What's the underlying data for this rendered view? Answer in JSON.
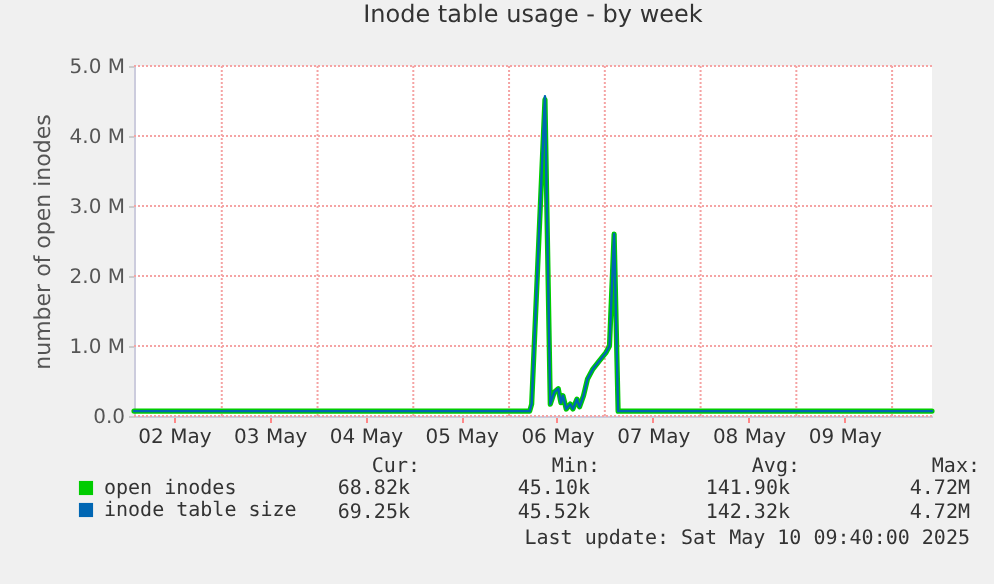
{
  "chart_data": {
    "type": "line",
    "title": "Inode table usage - by week",
    "ylabel": "number of open inodes",
    "x": [
      "2025-05-02T02:00",
      "2025-05-06T05:10",
      "2025-05-06T05:40",
      "2025-05-06T09:00",
      "2025-05-06T10:20",
      "2025-05-06T11:20",
      "2025-05-06T12:20",
      "2025-05-06T13:00",
      "2025-05-06T13:30",
      "2025-05-06T14:20",
      "2025-05-06T15:20",
      "2025-05-06T16:00",
      "2025-05-06T17:00",
      "2025-05-06T17:40",
      "2025-05-06T18:40",
      "2025-05-06T19:40",
      "2025-05-06T21:00",
      "2025-05-06T22:40",
      "2025-05-07T00:20",
      "2025-05-07T01:10",
      "2025-05-07T02:20",
      "2025-05-07T03:20",
      "2025-05-10T10:00"
    ],
    "series": [
      {
        "name": "open inodes",
        "color": "#00cc00",
        "values": [
          70000,
          70000,
          170000,
          4520000,
          170000,
          340000,
          390000,
          190000,
          290000,
          100000,
          170000,
          100000,
          240000,
          130000,
          290000,
          530000,
          670000,
          790000,
          910000,
          1000000,
          2600000,
          70000,
          70000
        ]
      },
      {
        "name": "inode table size",
        "color": "#0066b3",
        "values": [
          70000,
          70000,
          170000,
          4570000,
          170000,
          340000,
          390000,
          190000,
          290000,
          100000,
          170000,
          100000,
          240000,
          130000,
          290000,
          530000,
          670000,
          790000,
          910000,
          1000000,
          2600000,
          70000,
          70000
        ]
      }
    ],
    "xlim": [
      "2025-05-02T02:00",
      "2025-05-10T10:00"
    ],
    "xticks": [
      {
        "value": "2025-05-02T12:00",
        "label": "02 May"
      },
      {
        "value": "2025-05-03T00:00",
        "label": null
      },
      {
        "value": "2025-05-03T12:00",
        "label": "03 May"
      },
      {
        "value": "2025-05-04T00:00",
        "label": null
      },
      {
        "value": "2025-05-04T12:00",
        "label": "04 May"
      },
      {
        "value": "2025-05-05T00:00",
        "label": null
      },
      {
        "value": "2025-05-05T12:00",
        "label": "05 May"
      },
      {
        "value": "2025-05-06T00:00",
        "label": null
      },
      {
        "value": "2025-05-06T12:00",
        "label": "06 May"
      },
      {
        "value": "2025-05-07T00:00",
        "label": null
      },
      {
        "value": "2025-05-07T12:00",
        "label": "07 May"
      },
      {
        "value": "2025-05-08T00:00",
        "label": null
      },
      {
        "value": "2025-05-08T12:00",
        "label": "08 May"
      },
      {
        "value": "2025-05-09T00:00",
        "label": null
      },
      {
        "value": "2025-05-09T12:00",
        "label": "09 May"
      },
      {
        "value": "2025-05-10T00:00",
        "label": null
      }
    ],
    "ylim": [
      0,
      5000000
    ],
    "yticks": [
      {
        "value": 0,
        "label": "0.0"
      },
      {
        "value": 1000000,
        "label": "1.0 M"
      },
      {
        "value": 2000000,
        "label": "2.0 M"
      },
      {
        "value": 3000000,
        "label": "3.0 M"
      },
      {
        "value": 4000000,
        "label": "4.0 M"
      },
      {
        "value": 5000000,
        "label": "5.0 M"
      }
    ],
    "grid": true,
    "legend": "bottom left",
    "annotations": [
      "Cur:",
      "Min:",
      "Avg:",
      "Max:",
      "68.82k",
      "45.10k",
      "141.90k",
      "4.72M",
      "69.25k",
      "45.52k",
      "142.32k",
      "4.72M",
      "Last update: Sat May 10 09:40:00 2025"
    ]
  }
}
